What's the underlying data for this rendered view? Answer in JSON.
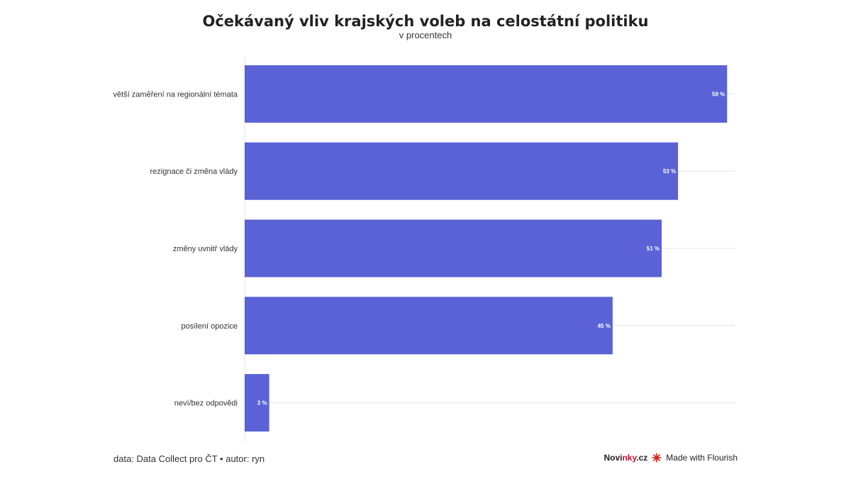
{
  "header": {
    "title": "Očekávaný vliv krajských voleb na celostátní politiku",
    "subtitle": "v procentech"
  },
  "footer": {
    "source": "data: Data Collect pro ČT • autor: ryn",
    "brand_prefix": "Novi",
    "brand_accent": "nky",
    "brand_suffix": ".cz",
    "made_with": "Made with Flourish"
  },
  "colors": {
    "bar": "#5a62d6",
    "grid": "#e4e4e4",
    "brand_accent": "#c8102e"
  },
  "chart_data": {
    "type": "bar",
    "orientation": "horizontal",
    "categories": [
      "větší zaměření na regionální témata",
      "rezignace či změna vlády",
      "změny uvnitř vlády",
      "posílení opozice",
      "neví/bez odpovědi"
    ],
    "values": [
      59,
      53,
      51,
      45,
      3
    ],
    "value_labels": [
      "59 %",
      "53 %",
      "51 %",
      "45 %",
      "3 %"
    ],
    "xlim": [
      0,
      60
    ],
    "grid": true,
    "legend": "none"
  }
}
